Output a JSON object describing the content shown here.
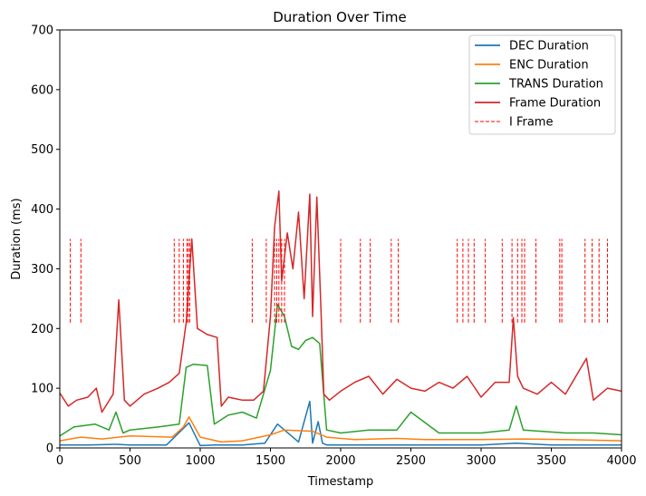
{
  "chart_data": {
    "type": "line",
    "title": "Duration Over Time",
    "xlabel": "Timestamp",
    "ylabel": "Duration (ms)",
    "xlim": [
      0,
      4000
    ],
    "ylim": [
      0,
      700
    ],
    "x_ticks": [
      "0",
      "500",
      "1000",
      "1500",
      "2000",
      "2500",
      "3000",
      "3500",
      "4000"
    ],
    "y_ticks": [
      "0",
      "100",
      "200",
      "300",
      "400",
      "500",
      "600",
      "700"
    ],
    "grid": false,
    "legend_position": "top-right",
    "series": [
      {
        "name": "DEC Duration",
        "color": "#1f77b4",
        "x": [
          0,
          200,
          400,
          500,
          760,
          920,
          1000,
          1100,
          1300,
          1460,
          1550,
          1700,
          1780,
          1800,
          1840,
          1870,
          1900,
          2200,
          2600,
          3000,
          3250,
          3500,
          4000
        ],
        "values": [
          5,
          5,
          6,
          5,
          5,
          42,
          4,
          5,
          5,
          8,
          40,
          10,
          78,
          8,
          44,
          8,
          5,
          5,
          5,
          5,
          8,
          5,
          5
        ]
      },
      {
        "name": "ENC Duration",
        "color": "#ff7f0e",
        "x": [
          0,
          150,
          300,
          500,
          800,
          880,
          920,
          1000,
          1150,
          1300,
          1500,
          1600,
          1800,
          1900,
          2100,
          2400,
          2600,
          3000,
          3300,
          3600,
          4000
        ],
        "values": [
          12,
          18,
          15,
          20,
          18,
          35,
          52,
          18,
          10,
          12,
          22,
          30,
          28,
          18,
          14,
          16,
          14,
          14,
          15,
          14,
          12
        ]
      },
      {
        "name": "TRANS Duration",
        "color": "#2ca02c",
        "x": [
          0,
          100,
          250,
          350,
          400,
          450,
          500,
          700,
          850,
          900,
          950,
          1050,
          1100,
          1200,
          1300,
          1400,
          1500,
          1550,
          1600,
          1650,
          1700,
          1750,
          1800,
          1850,
          1900,
          2000,
          2200,
          2400,
          2500,
          2700,
          3000,
          3200,
          3250,
          3300,
          3600,
          3800,
          4000
        ],
        "values": [
          20,
          35,
          40,
          30,
          60,
          25,
          30,
          35,
          40,
          135,
          140,
          138,
          40,
          55,
          60,
          50,
          130,
          240,
          220,
          170,
          165,
          180,
          185,
          175,
          30,
          25,
          30,
          30,
          60,
          25,
          25,
          30,
          70,
          30,
          25,
          25,
          22
        ]
      },
      {
        "name": "Frame Duration",
        "color": "#d62728",
        "x": [
          0,
          60,
          120,
          200,
          260,
          300,
          380,
          420,
          460,
          500,
          600,
          700,
          780,
          850,
          900,
          940,
          980,
          1050,
          1120,
          1150,
          1200,
          1300,
          1380,
          1450,
          1500,
          1530,
          1560,
          1580,
          1620,
          1660,
          1700,
          1740,
          1780,
          1800,
          1830,
          1860,
          1880,
          1920,
          2000,
          2100,
          2200,
          2300,
          2400,
          2500,
          2600,
          2700,
          2800,
          2900,
          3000,
          3100,
          3200,
          3230,
          3260,
          3300,
          3400,
          3500,
          3600,
          3700,
          3750,
          3800,
          3900,
          4000
        ],
        "values": [
          92,
          70,
          80,
          85,
          100,
          60,
          90,
          248,
          80,
          70,
          90,
          100,
          110,
          125,
          210,
          350,
          200,
          190,
          185,
          70,
          85,
          80,
          80,
          95,
          220,
          370,
          430,
          280,
          360,
          300,
          395,
          250,
          425,
          220,
          420,
          230,
          90,
          80,
          95,
          110,
          120,
          90,
          115,
          100,
          95,
          110,
          100,
          120,
          85,
          110,
          110,
          218,
          120,
          100,
          90,
          110,
          90,
          130,
          150,
          80,
          100,
          95
        ]
      }
    ],
    "i_frames": {
      "name": "I Frame",
      "color": "#ff0000",
      "y_range": [
        210,
        350
      ],
      "x": [
        75,
        150,
        815,
        850,
        880,
        905,
        915,
        925,
        1370,
        1470,
        1530,
        1545,
        1560,
        1580,
        1600,
        2000,
        2140,
        2210,
        2360,
        2410,
        2830,
        2870,
        2910,
        2950,
        3030,
        3150,
        3220,
        3260,
        3290,
        3310,
        3390,
        3560,
        3575,
        3740,
        3790,
        3840,
        3900
      ]
    }
  }
}
